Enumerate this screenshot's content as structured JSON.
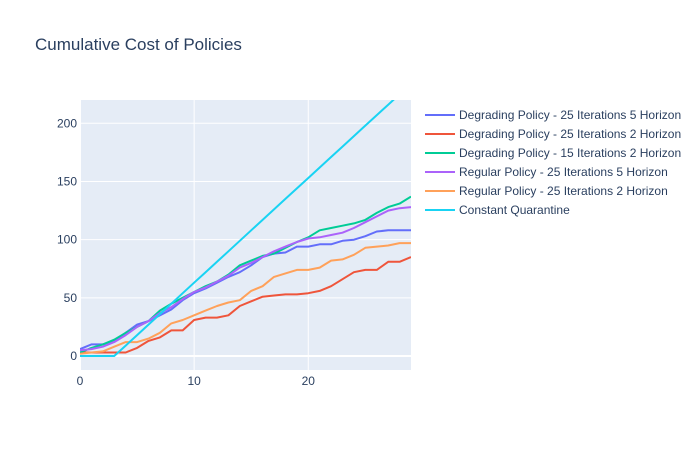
{
  "chart_data": {
    "type": "line",
    "title": "Cumulative Cost of Policies",
    "xlabel": "",
    "ylabel": "",
    "xlim": [
      0,
      29
    ],
    "ylim": [
      -12,
      220
    ],
    "xticks": [
      0,
      10,
      20
    ],
    "yticks": [
      0,
      50,
      100,
      150,
      200
    ],
    "grid": true,
    "legend_position": "right",
    "plot_bg": "#e5ecf6",
    "series": [
      {
        "name": "Degrading Policy - 25 Iterations 5 Horizon",
        "color": "#636efa",
        "x": [
          0,
          1,
          2,
          3,
          4,
          5,
          6,
          7,
          8,
          9,
          10,
          11,
          12,
          13,
          14,
          15,
          16,
          17,
          18,
          19,
          20,
          21,
          22,
          23,
          24,
          25,
          26,
          27,
          28,
          29
        ],
        "values": [
          6,
          10,
          10,
          13,
          20,
          27,
          30,
          35,
          40,
          48,
          54,
          58,
          63,
          68,
          72,
          78,
          85,
          88,
          89,
          94,
          94,
          96,
          96,
          99,
          100,
          103,
          107,
          108,
          108,
          108
        ]
      },
      {
        "name": "Degrading Policy - 25 Iterations 2 Horizon",
        "color": "#ef553b",
        "x": [
          0,
          1,
          2,
          3,
          4,
          5,
          6,
          7,
          8,
          9,
          10,
          11,
          12,
          13,
          14,
          15,
          16,
          17,
          18,
          19,
          20,
          21,
          22,
          23,
          24,
          25,
          26,
          27,
          28,
          29
        ],
        "values": [
          3,
          3,
          3,
          3,
          3,
          7,
          13,
          16,
          22,
          22,
          31,
          33,
          33,
          35,
          43,
          47,
          51,
          52,
          53,
          53,
          54,
          56,
          60,
          66,
          72,
          74,
          74,
          81,
          81,
          85
        ]
      },
      {
        "name": "Degrading Policy - 15 Iterations 2 Horizon",
        "color": "#00cc96",
        "x": [
          0,
          1,
          2,
          3,
          4,
          5,
          6,
          7,
          8,
          9,
          10,
          11,
          12,
          13,
          14,
          15,
          16,
          17,
          18,
          19,
          20,
          21,
          22,
          23,
          24,
          25,
          26,
          27,
          28,
          29
        ],
        "values": [
          3,
          7,
          10,
          14,
          20,
          25,
          30,
          39,
          45,
          50,
          55,
          60,
          64,
          70,
          78,
          82,
          86,
          88,
          93,
          98,
          102,
          108,
          110,
          112,
          114,
          117,
          123,
          128,
          131,
          137
        ]
      },
      {
        "name": "Regular Policy - 25 Iterations 5 Horizon",
        "color": "#ab63fa",
        "x": [
          0,
          1,
          2,
          3,
          4,
          5,
          6,
          7,
          8,
          9,
          10,
          11,
          12,
          13,
          14,
          15,
          16,
          17,
          18,
          19,
          20,
          21,
          22,
          23,
          24,
          25,
          26,
          27,
          28,
          29
        ],
        "values": [
          5,
          6,
          8,
          12,
          18,
          25,
          30,
          37,
          42,
          49,
          55,
          59,
          64,
          69,
          76,
          80,
          85,
          90,
          94,
          98,
          101,
          102,
          104,
          106,
          110,
          115,
          120,
          125,
          127,
          128
        ]
      },
      {
        "name": "Regular Policy - 25 Iterations 2 Horizon",
        "color": "#ffa15a",
        "x": [
          0,
          1,
          2,
          3,
          4,
          5,
          6,
          7,
          8,
          9,
          10,
          11,
          12,
          13,
          14,
          15,
          16,
          17,
          18,
          19,
          20,
          21,
          22,
          23,
          24,
          25,
          26,
          27,
          28,
          29
        ],
        "values": [
          2,
          3,
          4,
          8,
          12,
          12,
          15,
          20,
          28,
          31,
          35,
          39,
          43,
          46,
          48,
          56,
          60,
          68,
          71,
          74,
          74,
          76,
          82,
          83,
          87,
          93,
          94,
          95,
          97,
          97
        ]
      },
      {
        "name": "Constant Quarantine",
        "color": "#19d3f3",
        "x": [
          0,
          1,
          2,
          3,
          4,
          5,
          6,
          7,
          8,
          9,
          10,
          11,
          12,
          13,
          14,
          15,
          16,
          17,
          18,
          19,
          20,
          21,
          22,
          23,
          24,
          25,
          26,
          27,
          28,
          29
        ],
        "values": [
          0,
          0,
          0,
          0,
          9,
          18,
          27,
          36,
          45,
          54,
          63,
          72,
          81,
          90,
          99,
          108,
          117,
          126,
          135,
          144,
          153,
          162,
          171,
          180,
          189,
          198,
          207,
          216,
          225,
          234
        ]
      }
    ]
  }
}
